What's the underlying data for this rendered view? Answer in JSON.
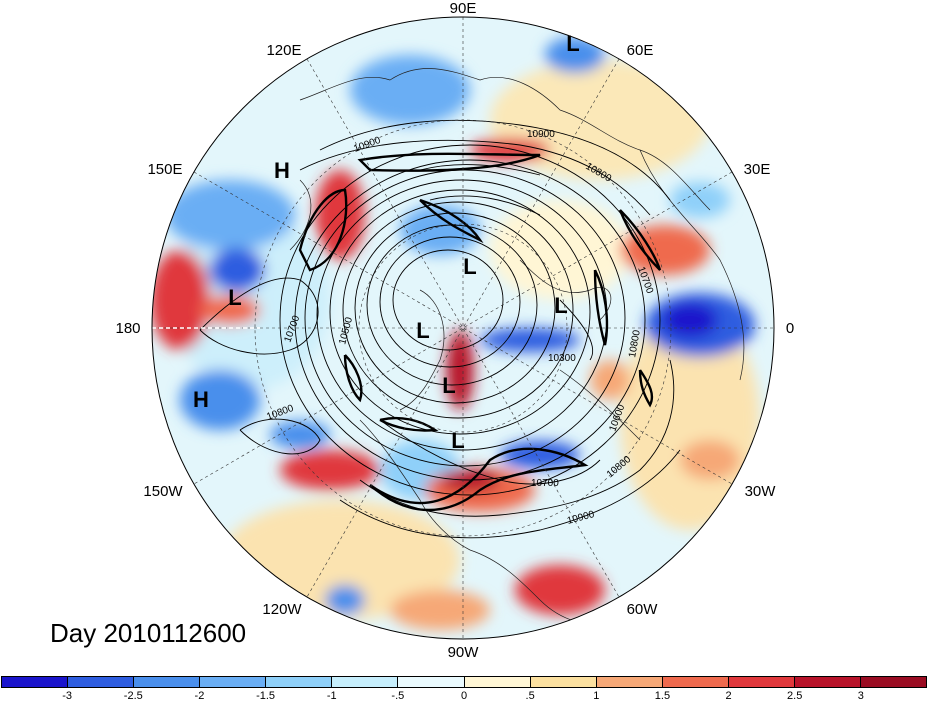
{
  "title": "Day 2010112600",
  "longitude_labels": {
    "top": "90E",
    "top_left": "120E",
    "top_right": "60E",
    "upper_left": "150E",
    "upper_right": "30E",
    "left": "180",
    "right": "0",
    "lower_left": "150W",
    "lower_right": "30W",
    "bottom_left": "120W",
    "bottom_right": "60W",
    "bottom": "90W"
  },
  "pressure_centers": [
    {
      "label": "H",
      "id": "h-150e"
    },
    {
      "label": "H",
      "id": "h-pacific"
    },
    {
      "label": "L",
      "id": "l-top"
    },
    {
      "label": "L",
      "id": "l-dateline"
    },
    {
      "label": "L",
      "id": "l-russia"
    },
    {
      "label": "L",
      "id": "l-europe"
    },
    {
      "label": "L",
      "id": "l-pole"
    },
    {
      "label": "L",
      "id": "l-canada-1"
    },
    {
      "label": "L",
      "id": "l-canada-2"
    }
  ],
  "contour_labels": [
    "10900",
    "10800",
    "10700",
    "10500",
    "10800",
    "10300",
    "10900",
    "10800",
    "10700",
    "10600",
    "10800",
    "10700",
    "10900"
  ],
  "colorbar": {
    "ticks": [
      "-3",
      "-2.5",
      "-2",
      "-1.5",
      "-1",
      "-.5",
      "0",
      ".5",
      "1",
      "1.5",
      "2",
      "2.5",
      "3"
    ],
    "colors": [
      "#1a14cc",
      "#2e5de0",
      "#4a8fec",
      "#6aaef4",
      "#8fd0f9",
      "#c6eefc",
      "#eafafe",
      "#fff6d5",
      "#fbe0a0",
      "#f6a877",
      "#ef6a4e",
      "#e0383c",
      "#b8132a",
      "#9a0c22"
    ]
  }
}
